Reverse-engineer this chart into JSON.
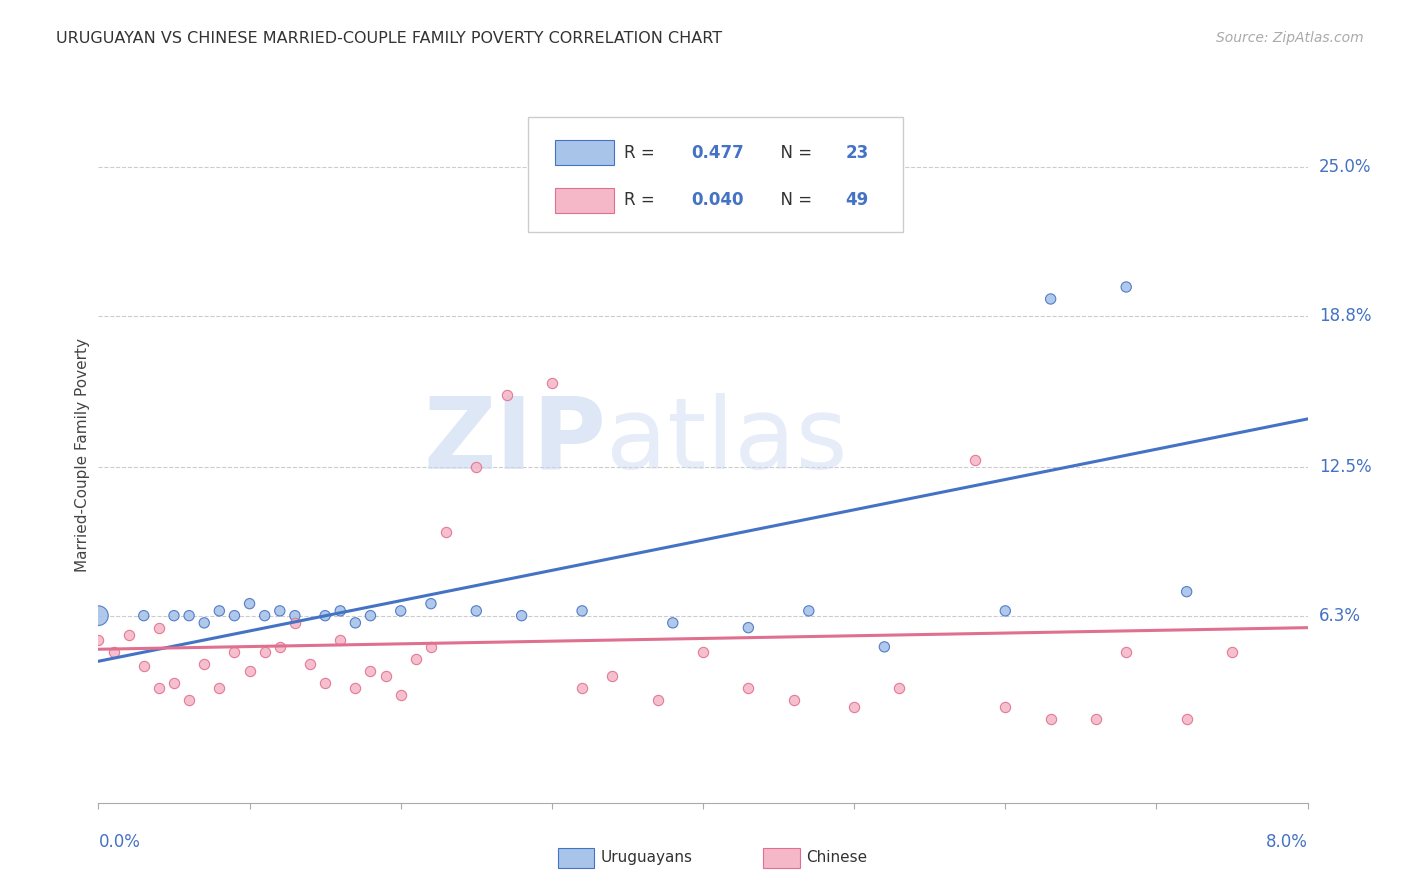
{
  "title": "URUGUAYAN VS CHINESE MARRIED-COUPLE FAMILY POVERTY CORRELATION CHART",
  "source": "Source: ZipAtlas.com",
  "ylabel": "Married-Couple Family Poverty",
  "ytick_labels": [
    "25.0%",
    "18.8%",
    "12.5%",
    "6.3%"
  ],
  "ytick_values": [
    0.25,
    0.188,
    0.125,
    0.063
  ],
  "xlim": [
    0.0,
    0.08
  ],
  "ylim": [
    -0.015,
    0.275
  ],
  "watermark_zip": "ZIP",
  "watermark_atlas": "atlas",
  "legend_uruguayan_r": "0.477",
  "legend_uruguayan_n": "23",
  "legend_chinese_r": "0.040",
  "legend_chinese_n": "49",
  "uruguayan_color": "#a8c4e8",
  "chinese_color": "#f4b8c8",
  "uruguayan_line_color": "#4472c4",
  "chinese_line_color": "#e07090",
  "uruguayan_scatter_x": [
    0.0,
    0.003,
    0.005,
    0.006,
    0.007,
    0.008,
    0.009,
    0.01,
    0.011,
    0.012,
    0.013,
    0.015,
    0.016,
    0.017,
    0.018,
    0.02,
    0.022,
    0.025,
    0.028,
    0.032,
    0.038,
    0.043,
    0.047,
    0.052,
    0.06,
    0.063,
    0.068,
    0.072
  ],
  "uruguayan_scatter_y": [
    0.063,
    0.063,
    0.063,
    0.063,
    0.06,
    0.065,
    0.063,
    0.068,
    0.063,
    0.065,
    0.063,
    0.063,
    0.065,
    0.06,
    0.063,
    0.065,
    0.068,
    0.065,
    0.063,
    0.065,
    0.06,
    0.058,
    0.065,
    0.05,
    0.065,
    0.195,
    0.2,
    0.073
  ],
  "uruguayan_scatter_large": [
    0
  ],
  "chinese_scatter_x": [
    0.0,
    0.001,
    0.002,
    0.003,
    0.004,
    0.004,
    0.005,
    0.006,
    0.007,
    0.008,
    0.009,
    0.01,
    0.011,
    0.012,
    0.013,
    0.014,
    0.015,
    0.016,
    0.017,
    0.018,
    0.019,
    0.02,
    0.021,
    0.022,
    0.023,
    0.025,
    0.027,
    0.03,
    0.032,
    0.034,
    0.037,
    0.04,
    0.043,
    0.046,
    0.05,
    0.053,
    0.058,
    0.06,
    0.063,
    0.066,
    0.068,
    0.072,
    0.075
  ],
  "chinese_scatter_y": [
    0.053,
    0.048,
    0.055,
    0.042,
    0.033,
    0.058,
    0.035,
    0.028,
    0.043,
    0.033,
    0.048,
    0.04,
    0.048,
    0.05,
    0.06,
    0.043,
    0.035,
    0.053,
    0.033,
    0.04,
    0.038,
    0.03,
    0.045,
    0.05,
    0.098,
    0.125,
    0.155,
    0.16,
    0.033,
    0.038,
    0.028,
    0.048,
    0.033,
    0.028,
    0.025,
    0.033,
    0.128,
    0.025,
    0.02,
    0.02,
    0.048,
    0.02,
    0.048
  ],
  "uruguayan_line_x": [
    0.0,
    0.08
  ],
  "uruguayan_line_y": [
    0.044,
    0.145
  ],
  "chinese_line_x": [
    0.0,
    0.08
  ],
  "chinese_line_y": [
    0.049,
    0.058
  ]
}
